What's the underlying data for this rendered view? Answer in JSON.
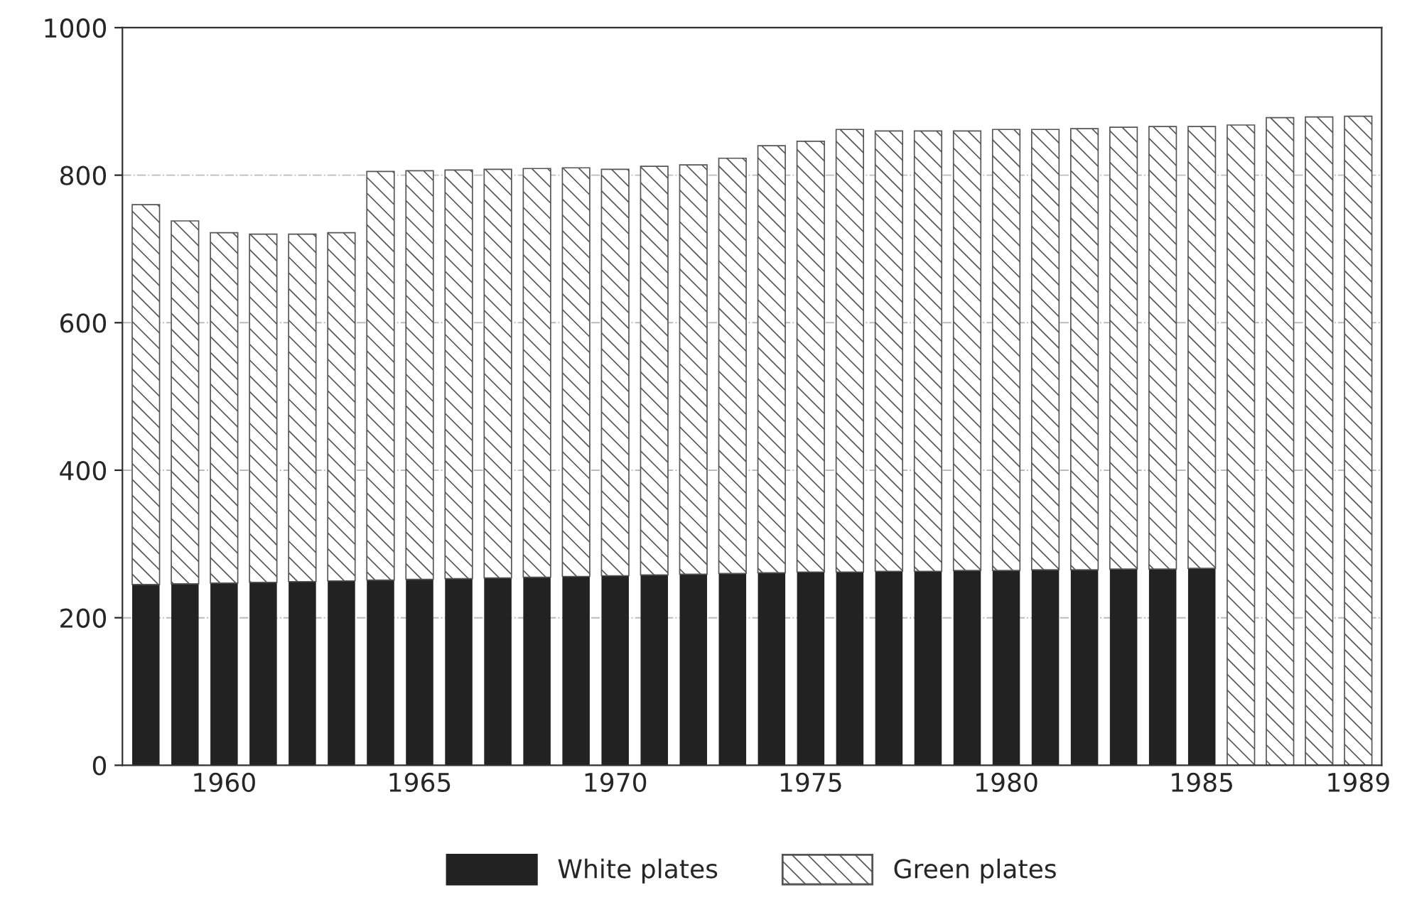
{
  "chart_data": {
    "type": "bar",
    "stacked": true,
    "categories": [
      null,
      null,
      "1960",
      null,
      null,
      null,
      null,
      "1965",
      null,
      null,
      null,
      null,
      "1970",
      null,
      null,
      null,
      null,
      "1975",
      null,
      null,
      null,
      null,
      "1980",
      null,
      null,
      null,
      null,
      "1985",
      null,
      null,
      null,
      "1989"
    ],
    "series": [
      {
        "name": "White plates",
        "color": "#222222",
        "values": [
          245,
          246,
          247,
          248,
          249,
          250,
          251,
          252,
          253,
          254,
          255,
          256,
          257,
          258,
          259,
          260,
          261,
          262,
          262,
          263,
          263,
          264,
          264,
          265,
          265,
          266,
          266,
          267,
          null,
          null,
          null,
          null
        ]
      },
      {
        "name": "Green plates",
        "color": "#555555",
        "values": [
          515,
          492,
          475,
          472,
          471,
          472,
          554,
          554,
          554,
          554,
          554,
          554,
          551,
          554,
          555,
          563,
          579,
          584,
          600,
          597,
          597,
          596,
          598,
          597,
          598,
          599,
          600,
          599,
          868,
          878,
          879,
          880
        ]
      }
    ],
    "ylim": [
      0,
      1000
    ],
    "yticks": [
      0,
      200,
      400,
      600,
      800,
      1000
    ],
    "grid": "y",
    "legend": "bottom"
  }
}
